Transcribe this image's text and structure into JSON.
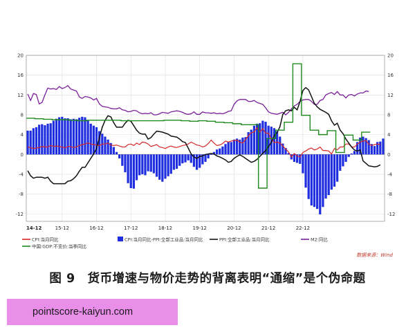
{
  "chart_data": {
    "type": "bar+line",
    "x_tick_labels": [
      "14-12",
      "15-12",
      "16-12",
      "17-12",
      "18-12",
      "19-12",
      "20-12",
      "21-12",
      "22-12"
    ],
    "y_tick_labels": [
      "20",
      "16",
      "12",
      "8",
      "4",
      "0",
      "-4",
      "-8",
      "-12"
    ],
    "ylim": [
      -13.5,
      20
    ],
    "grid": true,
    "legend_position": "bottom",
    "annotation": "数据来源：Wind",
    "series": [
      {
        "name": "CPI:当月同比",
        "kind": "line",
        "color": "#d62728",
        "values": [
          1.5,
          1.4,
          1.2,
          1.3,
          1.4,
          1.6,
          1.5,
          1.5,
          1.8,
          1.6,
          1.7,
          1.6,
          1.5,
          1.3,
          1.6,
          1.6,
          1.4,
          1.5,
          1.8,
          2.0,
          2.1,
          2.3,
          2.1,
          2.0,
          1.9,
          1.8,
          2.1,
          2.1,
          2.3,
          1.9,
          1.8,
          1.9,
          1.7,
          1.5,
          1.5,
          2.0,
          2.1,
          1.8,
          2.3,
          2.0,
          2.5,
          2.4,
          2.1,
          1.6,
          1.8,
          2.0,
          1.5,
          1.4,
          1.2,
          1.5,
          1.7,
          1.5,
          1.4,
          1.6,
          1.8,
          1.9,
          2.1,
          2.5,
          2.2,
          1.9,
          1.8,
          1.5,
          1.7,
          2.2,
          2.9,
          2.3,
          1.8,
          1.9,
          2.2,
          2.7,
          2.5,
          2.7,
          2.8,
          2.9,
          2.5,
          2.3,
          3.0,
          3.8,
          4.4,
          4.5,
          5.4,
          4.5,
          5.2,
          4.3,
          4.3,
          3.1,
          2.4,
          2.5,
          2.3,
          1.7,
          1.1,
          0.5,
          -0.5,
          0.2,
          -0.3,
          -0.5,
          0.4,
          0.7,
          1.1,
          1.3,
          0.9,
          1.1,
          1.5,
          0.8,
          0.8,
          0.7,
          0.1,
          1.2,
          0.9,
          1.5,
          1.5,
          2.1,
          2.1,
          1.5,
          1.5,
          2.1,
          2.5,
          2.7,
          2.8,
          2.1,
          1.8,
          2.0,
          2.1,
          2.0
        ]
      },
      {
        "name": "CPI:当月同比-PPI:全部工业品:当月同比",
        "kind": "bar",
        "color": "#1f2fe0",
        "values": [
          4.8,
          4.8,
          5.3,
          5.5,
          6.0,
          6.1,
          5.9,
          6.2,
          6.3,
          6.8,
          7.2,
          7.5,
          7.6,
          7.3,
          7.3,
          7.1,
          7.2,
          7.1,
          7.4,
          7.6,
          7.5,
          6.8,
          6.2,
          5.8,
          5.5,
          4.7,
          4.2,
          3.6,
          3.0,
          2.3,
          1.5,
          0.5,
          -0.8,
          -2.3,
          -3.6,
          -5.8,
          -6.8,
          -6.9,
          -5.2,
          -4.2,
          -4.0,
          -4.2,
          -3.4,
          -3.5,
          -3.8,
          -4.5,
          -5.1,
          -5.5,
          -4.9,
          -4.4,
          -3.9,
          -3.1,
          -2.9,
          -2.3,
          -1.8,
          -1.6,
          -1.2,
          -1.7,
          -2.5,
          -3.1,
          -2.7,
          -2.0,
          -1.5,
          -0.8,
          -0.1,
          0.5,
          1.0,
          1.2,
          1.6,
          2.1,
          2.5,
          2.5,
          3.0,
          3.2,
          3.0,
          3.4,
          3.5,
          4.5,
          5.0,
          5.8,
          6.2,
          6.3,
          6.8,
          6.6,
          5.8,
          5.6,
          5.3,
          4.7,
          3.6,
          2.2,
          1.3,
          0.3,
          -1.0,
          -1.5,
          -1.7,
          -1.9,
          -3.8,
          -6.7,
          -9.0,
          -10.3,
          -10.6,
          -11.0,
          -12.1,
          -10.6,
          -8.9,
          -8.2,
          -7.1,
          -6.5,
          -5.5,
          -3.3,
          -2.4,
          -1.5,
          -0.5,
          0.2,
          0.7,
          2.5,
          3.4,
          3.6,
          3.3,
          2.9,
          2.1,
          1.7,
          2.5,
          2.6,
          3.2
        ]
      },
      {
        "name": "PPI:全部工业品:当月同比",
        "kind": "line",
        "color": "#111111",
        "values": [
          -3.3,
          -4.3,
          -4.8,
          -4.6,
          -4.6,
          -4.6,
          -4.8,
          -4.6,
          -5.4,
          -5.9,
          -5.9,
          -5.9,
          -5.9,
          -5.9,
          -5.4,
          -5.3,
          -4.9,
          -4.3,
          -3.4,
          -2.6,
          -2.6,
          -1.7,
          -0.8,
          0.1,
          1.2,
          3.3,
          5.5,
          6.9,
          7.8,
          7.6,
          6.4,
          5.5,
          5.5,
          5.5,
          6.3,
          6.9,
          6.7,
          5.8,
          4.9,
          4.3,
          4.1,
          4.1,
          3.1,
          3.4,
          4.1,
          4.7,
          4.6,
          4.5,
          4.3,
          4.1,
          3.7,
          3.6,
          3.5,
          3.1,
          2.6,
          2.4,
          1.3,
          0.1,
          -0.5,
          -0.8,
          -0.4,
          -0.3,
          0.0,
          0.1,
          0.2,
          0.1,
          -0.3,
          -0.5,
          -0.8,
          -1.1,
          -1.6,
          -1.4,
          -0.8,
          -0.4,
          -0.1,
          -0.4,
          -0.8,
          -1.2,
          -1.6,
          -1.4,
          -1.0,
          -0.4,
          0.2,
          0.8,
          1.5,
          2.5,
          3.8,
          4.4,
          5.6,
          8.1,
          8.8,
          9.0,
          8.8,
          9.5,
          9.0,
          10.7,
          12.9,
          13.5,
          13.0,
          11.7,
          10.3,
          9.6,
          9.1,
          8.8,
          8.5,
          8.1,
          6.8,
          5.9,
          6.3,
          4.9,
          4.2,
          3.1,
          2.3,
          1.5,
          0.9,
          0.7,
          0.9,
          -1.3,
          -1.8,
          -2.3,
          -2.4,
          -2.5,
          -2.4,
          -2.1
        ]
      },
      {
        "name": "M2:同比",
        "kind": "line",
        "color": "#7a1f9a",
        "values": [
          12.2,
          10.9,
          12.3,
          12.1,
          10.2,
          10.5,
          12.0,
          13.4,
          13.2,
          13.3,
          13.1,
          13.7,
          13.3,
          13.5,
          13.9,
          13.2,
          13.0,
          12.8,
          11.6,
          11.3,
          11.7,
          11.6,
          11.4,
          11.0,
          11.3,
          10.2,
          9.7,
          9.6,
          9.5,
          9.3,
          9.2,
          9.2,
          9.4,
          9.0,
          8.9,
          8.6,
          8.7,
          8.9,
          8.8,
          8.4,
          8.2,
          8.3,
          8.2,
          8.4,
          8.0,
          8.0,
          8.2,
          8.5,
          8.4,
          8.3,
          8.6,
          8.7,
          8.8,
          8.7,
          8.5,
          8.2,
          8.1,
          8.2,
          8.6,
          8.1,
          8.1,
          8.6,
          8.4,
          8.4,
          8.3,
          8.4,
          8.2,
          8.3,
          8.2,
          8.4,
          8.7,
          8.8,
          10.1,
          10.8,
          11.1,
          11.1,
          11.1,
          10.7,
          10.7,
          10.9,
          10.5,
          10.3,
          10.1,
          9.4,
          8.6,
          8.3,
          8.2,
          8.1,
          8.3,
          8.5,
          8.0,
          8.5,
          9.2,
          9.8,
          10.1,
          10.7,
          11.0,
          11.1,
          11.1,
          10.7,
          10.1,
          10.1,
          10.9,
          11.1,
          12.0,
          12.3,
          12.5,
          12.1,
          12.7,
          12.0,
          12.0,
          11.4,
          12.0,
          12.1,
          11.8,
          12.2,
          12.4,
          12.4,
          12.8,
          12.7
        ]
      },
      {
        "name": "中国:GDP:不变价:当季同比",
        "kind": "line-step",
        "color": "#1e8a1e",
        "values": [
          7.3,
          7.2,
          7.1,
          7.0,
          7.0,
          6.9,
          6.8,
          6.9,
          6.9,
          6.9,
          6.9,
          6.8,
          6.8,
          6.8,
          6.8,
          6.8,
          6.9,
          6.9,
          6.8,
          6.7,
          6.8,
          6.7,
          6.5,
          6.4,
          6.2,
          6.0,
          6.0,
          -6.8,
          3.2,
          4.9,
          6.5,
          18.3,
          7.9,
          4.9,
          4.0,
          4.8,
          0.4,
          3.9,
          2.9,
          4.5
        ]
      }
    ]
  },
  "legend": [
    {
      "label": "CPI:当月同比",
      "kind": "line",
      "color": "#d62728"
    },
    {
      "label": "CPI:当月同比-PPI:全部工业品:当月同比",
      "kind": "bar",
      "color": "#1f2fe0"
    },
    {
      "label": "PPI:全部工业品:当月同比",
      "kind": "line",
      "color": "#111111"
    },
    {
      "label": "M2:同比",
      "kind": "line",
      "color": "#7a1f9a"
    },
    {
      "label": "中国:GDP:不变价:当季同比",
      "kind": "line",
      "color": "#1e8a1e"
    }
  ],
  "figure_caption": "图 9　货币增速与物价走势的背离表明“通缩”是个伪命题",
  "watermark_text": "pointscore-kaiyun.com"
}
